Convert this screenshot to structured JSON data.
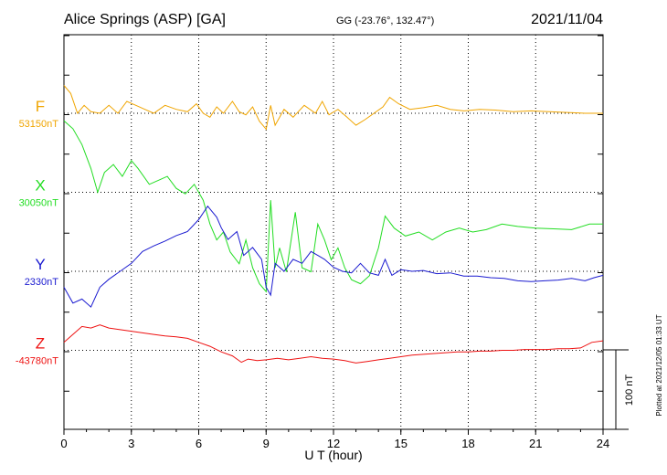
{
  "header": {
    "station": "Alice Springs (ASP)  [GA]",
    "coords": "GG (-23.76°, 132.47°)",
    "date": "2021/11/04"
  },
  "plotted_note": "Plotted at 2021/12/05 01:33 UT",
  "scale_bar_label": "100 nT",
  "chart_data": {
    "type": "line",
    "xlabel": "U T (hour)",
    "xlim": [
      0,
      24
    ],
    "x_ticks": [
      "0",
      "3",
      "6",
      "9",
      "12",
      "15",
      "18",
      "21",
      "24"
    ],
    "grid": true,
    "scale_nT": 100,
    "components": [
      {
        "name": "F",
        "baseline_label": "53150nT",
        "baseline_nT": 53150,
        "color": "#f0a500",
        "points": [
          [
            0,
            53185
          ],
          [
            0.3,
            53175
          ],
          [
            0.6,
            53150
          ],
          [
            0.9,
            53160
          ],
          [
            1.2,
            53152
          ],
          [
            1.6,
            53150
          ],
          [
            2.0,
            53160
          ],
          [
            2.4,
            53150
          ],
          [
            2.8,
            53165
          ],
          [
            3.2,
            53160
          ],
          [
            3.6,
            53155
          ],
          [
            4.0,
            53150
          ],
          [
            4.5,
            53160
          ],
          [
            5.0,
            53155
          ],
          [
            5.5,
            53152
          ],
          [
            5.9,
            53162
          ],
          [
            6.2,
            53150
          ],
          [
            6.5,
            53145
          ],
          [
            6.8,
            53158
          ],
          [
            7.1,
            53150
          ],
          [
            7.5,
            53165
          ],
          [
            7.8,
            53152
          ],
          [
            8.1,
            53148
          ],
          [
            8.4,
            53158
          ],
          [
            8.7,
            53140
          ],
          [
            9.0,
            53130
          ],
          [
            9.2,
            53160
          ],
          [
            9.4,
            53135
          ],
          [
            9.8,
            53155
          ],
          [
            10.2,
            53145
          ],
          [
            10.7,
            53160
          ],
          [
            11.2,
            53150
          ],
          [
            11.5,
            53165
          ],
          [
            11.8,
            53148
          ],
          [
            12.2,
            53155
          ],
          [
            12.6,
            53145
          ],
          [
            13.0,
            53135
          ],
          [
            13.4,
            53142
          ],
          [
            13.8,
            53150
          ],
          [
            14.2,
            53158
          ],
          [
            14.5,
            53170
          ],
          [
            14.9,
            53162
          ],
          [
            15.4,
            53155
          ],
          [
            16.0,
            53157
          ],
          [
            16.6,
            53160
          ],
          [
            17.2,
            53155
          ],
          [
            17.8,
            53153
          ],
          [
            18.5,
            53155
          ],
          [
            19.2,
            53154
          ],
          [
            20.0,
            53152
          ],
          [
            20.8,
            53153
          ],
          [
            21.6,
            53152
          ],
          [
            22.4,
            53151
          ],
          [
            23.2,
            53150
          ],
          [
            24.0,
            53150
          ]
        ]
      },
      {
        "name": "X",
        "baseline_label": "30050nT",
        "baseline_nT": 30050,
        "color": "#22dd22",
        "points": [
          [
            0,
            30140
          ],
          [
            0.4,
            30130
          ],
          [
            0.8,
            30110
          ],
          [
            1.2,
            30080
          ],
          [
            1.5,
            30050
          ],
          [
            1.8,
            30075
          ],
          [
            2.2,
            30085
          ],
          [
            2.6,
            30070
          ],
          [
            3.0,
            30090
          ],
          [
            3.3,
            30080
          ],
          [
            3.8,
            30060
          ],
          [
            4.2,
            30065
          ],
          [
            4.6,
            30070
          ],
          [
            5.0,
            30055
          ],
          [
            5.4,
            30048
          ],
          [
            5.8,
            30060
          ],
          [
            6.2,
            30040
          ],
          [
            6.5,
            30010
          ],
          [
            6.8,
            29990
          ],
          [
            7.1,
            30000
          ],
          [
            7.4,
            29975
          ],
          [
            7.8,
            29960
          ],
          [
            8.1,
            29990
          ],
          [
            8.4,
            29955
          ],
          [
            8.7,
            29935
          ],
          [
            9.0,
            29925
          ],
          [
            9.2,
            30040
          ],
          [
            9.4,
            29955
          ],
          [
            9.6,
            29980
          ],
          [
            9.9,
            29950
          ],
          [
            10.3,
            30025
          ],
          [
            10.6,
            29955
          ],
          [
            11.0,
            29950
          ],
          [
            11.3,
            30010
          ],
          [
            11.6,
            29990
          ],
          [
            11.9,
            29965
          ],
          [
            12.2,
            29980
          ],
          [
            12.5,
            29955
          ],
          [
            12.8,
            29940
          ],
          [
            13.2,
            29935
          ],
          [
            13.6,
            29945
          ],
          [
            14.0,
            29980
          ],
          [
            14.3,
            30020
          ],
          [
            14.7,
            30005
          ],
          [
            15.2,
            29995
          ],
          [
            15.8,
            30000
          ],
          [
            16.4,
            29990
          ],
          [
            17.0,
            30000
          ],
          [
            17.6,
            30005
          ],
          [
            18.2,
            30000
          ],
          [
            18.8,
            30003
          ],
          [
            19.5,
            30010
          ],
          [
            20.2,
            30007
          ],
          [
            21.0,
            30005
          ],
          [
            21.8,
            30004
          ],
          [
            22.6,
            30003
          ],
          [
            23.4,
            30010
          ],
          [
            24.0,
            30010
          ]
        ]
      },
      {
        "name": "Y",
        "baseline_label": "2330nT",
        "baseline_nT": 2330,
        "color": "#1a1ad0",
        "points": [
          [
            0,
            2310
          ],
          [
            0.4,
            2290
          ],
          [
            0.8,
            2295
          ],
          [
            1.2,
            2285
          ],
          [
            1.6,
            2310
          ],
          [
            2.0,
            2320
          ],
          [
            2.5,
            2330
          ],
          [
            3.0,
            2340
          ],
          [
            3.5,
            2355
          ],
          [
            4.0,
            2362
          ],
          [
            4.5,
            2368
          ],
          [
            5.0,
            2375
          ],
          [
            5.5,
            2380
          ],
          [
            6.0,
            2395
          ],
          [
            6.4,
            2412
          ],
          [
            6.8,
            2398
          ],
          [
            7.0,
            2385
          ],
          [
            7.3,
            2370
          ],
          [
            7.7,
            2380
          ],
          [
            8.0,
            2350
          ],
          [
            8.4,
            2360
          ],
          [
            8.8,
            2345
          ],
          [
            9.0,
            2310
          ],
          [
            9.2,
            2300
          ],
          [
            9.4,
            2340
          ],
          [
            9.8,
            2330
          ],
          [
            10.2,
            2345
          ],
          [
            10.6,
            2340
          ],
          [
            11.0,
            2355
          ],
          [
            11.3,
            2350
          ],
          [
            11.6,
            2345
          ],
          [
            12.0,
            2335
          ],
          [
            12.4,
            2330
          ],
          [
            12.8,
            2328
          ],
          [
            13.2,
            2340
          ],
          [
            13.6,
            2328
          ],
          [
            14.0,
            2325
          ],
          [
            14.3,
            2345
          ],
          [
            14.6,
            2325
          ],
          [
            15.0,
            2332
          ],
          [
            15.5,
            2330
          ],
          [
            16.0,
            2331
          ],
          [
            16.6,
            2327
          ],
          [
            17.2,
            2328
          ],
          [
            17.8,
            2324
          ],
          [
            18.4,
            2324
          ],
          [
            19.0,
            2322
          ],
          [
            19.6,
            2321
          ],
          [
            20.2,
            2318
          ],
          [
            20.8,
            2317
          ],
          [
            21.4,
            2318
          ],
          [
            22.0,
            2319
          ],
          [
            22.6,
            2321
          ],
          [
            23.2,
            2318
          ],
          [
            23.6,
            2322
          ],
          [
            24.0,
            2325
          ]
        ]
      },
      {
        "name": "Z",
        "baseline_label": "-43780nT",
        "baseline_nT": -43780,
        "color": "#ee1111",
        "points": [
          [
            0,
            -43770
          ],
          [
            0.4,
            -43760
          ],
          [
            0.8,
            -43750
          ],
          [
            1.2,
            -43752
          ],
          [
            1.6,
            -43748
          ],
          [
            2.0,
            -43752
          ],
          [
            2.5,
            -43754
          ],
          [
            3.0,
            -43756
          ],
          [
            3.5,
            -43758
          ],
          [
            4.0,
            -43760
          ],
          [
            4.5,
            -43762
          ],
          [
            5.0,
            -43763
          ],
          [
            5.5,
            -43765
          ],
          [
            6.0,
            -43770
          ],
          [
            6.5,
            -43775
          ],
          [
            7.0,
            -43782
          ],
          [
            7.5,
            -43787
          ],
          [
            7.9,
            -43795
          ],
          [
            8.2,
            -43791
          ],
          [
            8.6,
            -43793
          ],
          [
            9.0,
            -43792
          ],
          [
            9.5,
            -43790
          ],
          [
            10.0,
            -43792
          ],
          [
            10.5,
            -43790
          ],
          [
            11.0,
            -43788
          ],
          [
            11.5,
            -43790
          ],
          [
            12.0,
            -43791
          ],
          [
            12.5,
            -43793
          ],
          [
            13.0,
            -43796
          ],
          [
            13.5,
            -43794
          ],
          [
            14.0,
            -43792
          ],
          [
            14.5,
            -43790
          ],
          [
            15.0,
            -43788
          ],
          [
            15.5,
            -43786
          ],
          [
            16.0,
            -43785
          ],
          [
            16.5,
            -43784
          ],
          [
            17.0,
            -43783
          ],
          [
            17.5,
            -43782
          ],
          [
            18.0,
            -43782
          ],
          [
            18.5,
            -43781
          ],
          [
            19.0,
            -43781
          ],
          [
            19.5,
            -43780
          ],
          [
            20.0,
            -43780
          ],
          [
            20.5,
            -43779
          ],
          [
            21.0,
            -43779
          ],
          [
            21.5,
            -43779
          ],
          [
            22.0,
            -43778
          ],
          [
            22.5,
            -43778
          ],
          [
            23.0,
            -43777
          ],
          [
            23.5,
            -43770
          ],
          [
            24.0,
            -43768
          ]
        ]
      }
    ]
  }
}
